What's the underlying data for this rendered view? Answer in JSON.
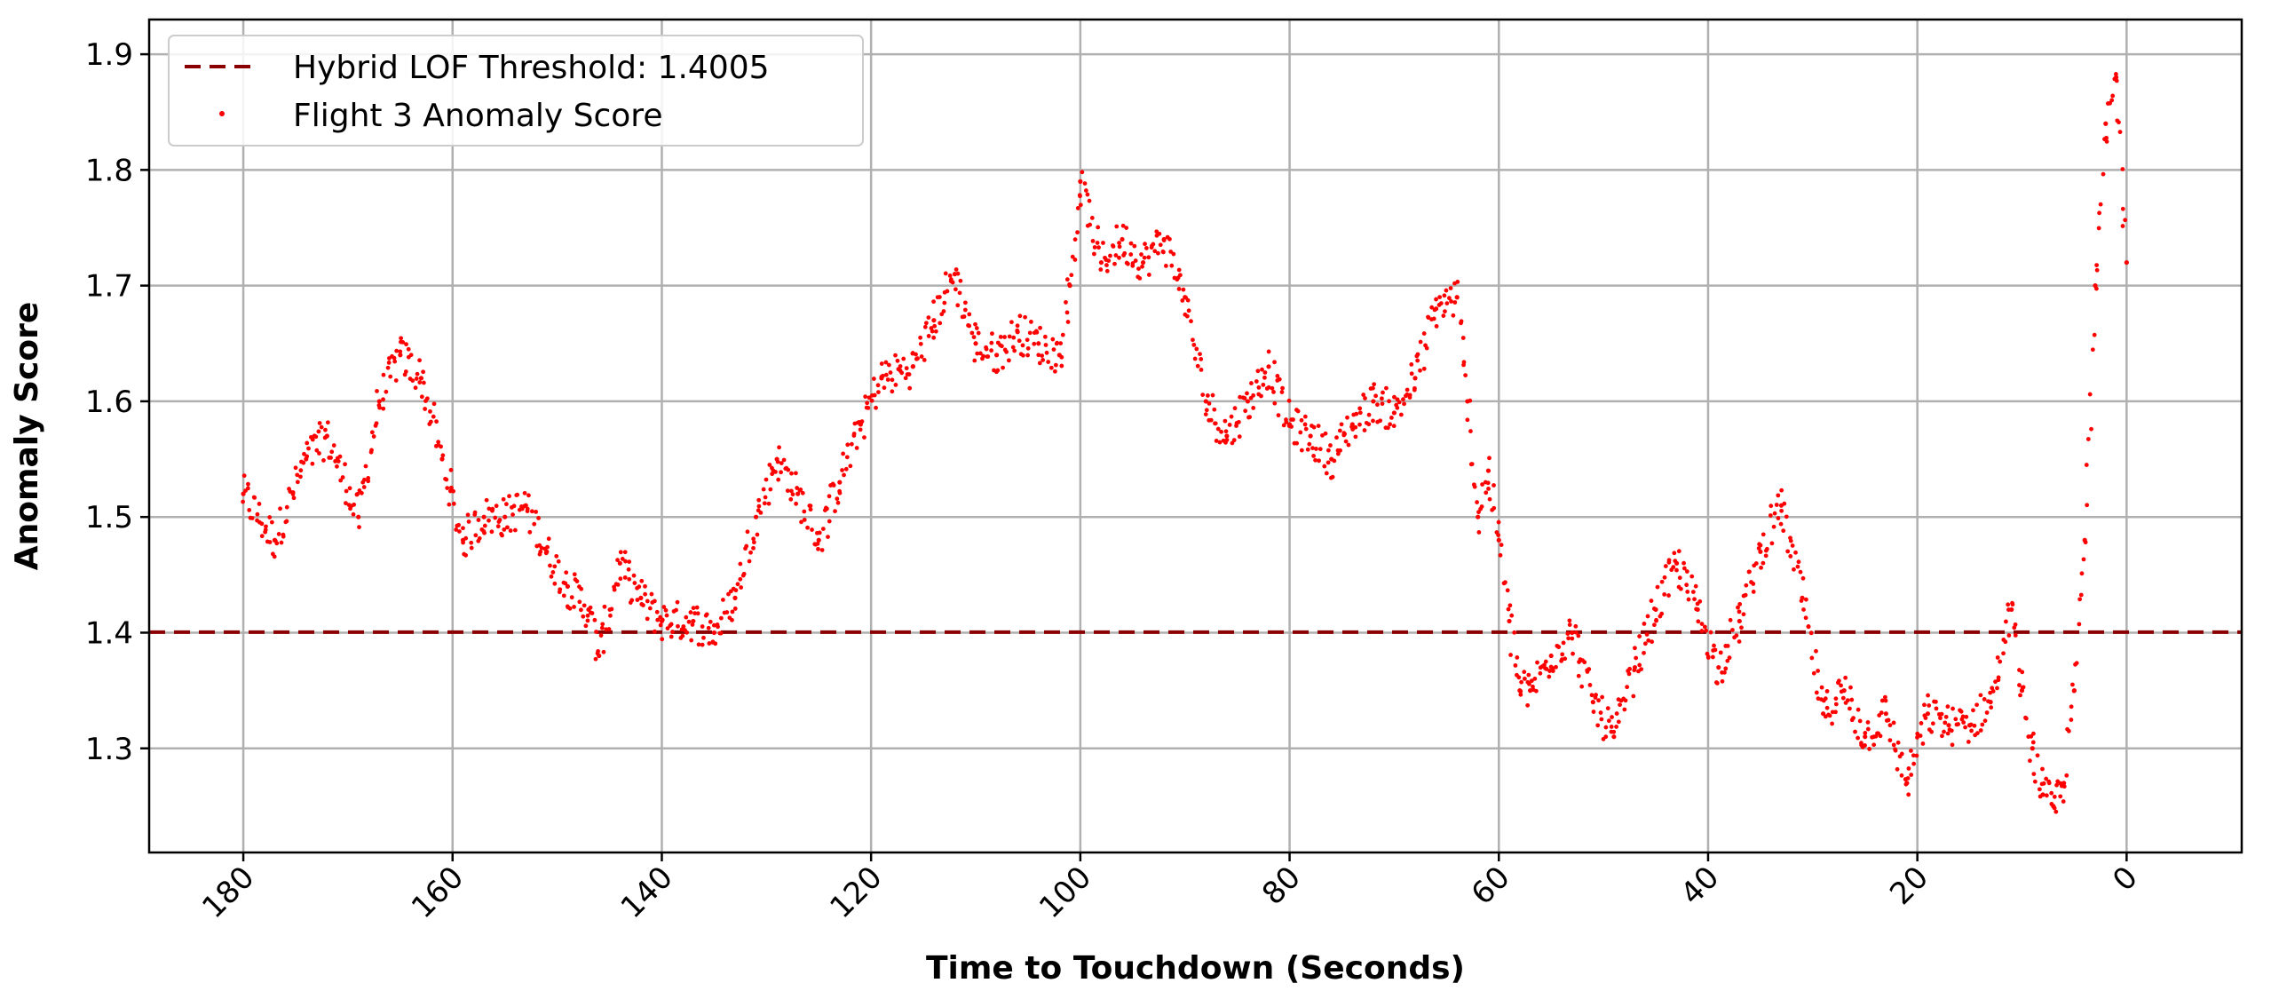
{
  "chart_data": {
    "type": "scatter",
    "xlabel": "Time to Touchdown (Seconds)",
    "ylabel": "Anomaly Score",
    "xlim": [
      189,
      -11
    ],
    "ylim": [
      1.21,
      1.93
    ],
    "x_reversed": true,
    "x_ticks": [
      180,
      160,
      140,
      120,
      100,
      80,
      60,
      40,
      20,
      0
    ],
    "y_ticks": [
      1.3,
      1.4,
      1.5,
      1.6,
      1.7,
      1.8,
      1.9
    ],
    "x_tick_labels": [
      "180",
      "160",
      "140",
      "120",
      "100",
      "80",
      "60",
      "40",
      "20",
      "0"
    ],
    "y_tick_labels": [
      "1.3",
      "1.4",
      "1.5",
      "1.6",
      "1.7",
      "1.8",
      "1.9"
    ],
    "grid": true,
    "legend_position": "top-left",
    "threshold": {
      "name": "Hybrid LOF Threshold: 1.4005",
      "value": 1.4005,
      "color": "#8b0000",
      "style": "dashed"
    },
    "series": [
      {
        "name": "Flight 3 Anomaly Score",
        "color": "#ff0000",
        "marker": "point",
        "x": [
          180,
          177,
          174,
          172,
          169,
          167,
          165,
          163,
          161,
          159,
          157,
          155,
          153,
          151,
          149,
          147,
          146,
          144,
          142,
          140,
          137,
          135,
          133,
          131,
          129,
          127,
          125,
          123,
          121,
          119,
          116,
          114,
          112,
          110,
          108,
          106,
          104,
          102,
          101,
          100,
          98,
          96,
          94,
          92,
          90,
          88,
          86,
          84,
          82,
          80,
          78,
          76,
          74,
          72,
          70,
          68,
          66,
          64,
          63,
          62,
          61,
          60,
          59,
          58,
          57,
          55,
          53,
          51,
          49,
          47,
          45,
          43,
          41,
          39,
          37,
          35,
          33,
          31,
          29,
          27,
          25,
          23,
          21,
          19,
          17,
          15,
          13,
          11,
          10,
          9,
          8,
          7,
          6,
          5,
          4,
          3,
          2,
          1,
          0
        ],
        "y": [
          1.52,
          1.48,
          1.55,
          1.57,
          1.5,
          1.6,
          1.64,
          1.62,
          1.55,
          1.48,
          1.5,
          1.5,
          1.51,
          1.47,
          1.44,
          1.42,
          1.38,
          1.46,
          1.43,
          1.41,
          1.41,
          1.4,
          1.43,
          1.5,
          1.55,
          1.52,
          1.48,
          1.53,
          1.58,
          1.62,
          1.63,
          1.67,
          1.71,
          1.65,
          1.64,
          1.66,
          1.65,
          1.64,
          1.7,
          1.79,
          1.72,
          1.74,
          1.72,
          1.74,
          1.69,
          1.6,
          1.57,
          1.6,
          1.63,
          1.58,
          1.57,
          1.55,
          1.58,
          1.6,
          1.59,
          1.62,
          1.68,
          1.69,
          1.6,
          1.5,
          1.54,
          1.48,
          1.41,
          1.35,
          1.35,
          1.38,
          1.4,
          1.34,
          1.31,
          1.37,
          1.42,
          1.46,
          1.42,
          1.37,
          1.41,
          1.47,
          1.51,
          1.43,
          1.33,
          1.35,
          1.31,
          1.33,
          1.27,
          1.33,
          1.32,
          1.32,
          1.34,
          1.42,
          1.35,
          1.3,
          1.26,
          1.25,
          1.27,
          1.35,
          1.48,
          1.7,
          1.84,
          1.88,
          1.72
        ]
      }
    ]
  }
}
